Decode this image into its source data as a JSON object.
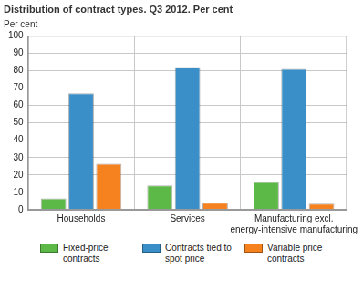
{
  "chart_data": {
    "type": "bar",
    "title": "Distribution of contract types. Q3 2012. Per cent",
    "y_label": "Per cent",
    "categories": [
      "Households",
      "Services",
      "Manufacturing excl. energy-intensive manufacturing"
    ],
    "series": [
      {
        "name": "Fixed-price contracts",
        "color": "#5cb847",
        "values": [
          6.5,
          14,
          16
        ]
      },
      {
        "name": "Contracts tied to spot price",
        "color": "#3a8fc9",
        "values": [
          67,
          82,
          81
        ]
      },
      {
        "name": "Variable price contracts",
        "color": "#f5821f",
        "values": [
          26.5,
          4,
          3.5
        ]
      }
    ],
    "ylim": [
      0,
      100
    ],
    "yticks": [
      0,
      10,
      20,
      30,
      40,
      50,
      60,
      70,
      80,
      90,
      100
    ],
    "grid": true,
    "legend": "bottom"
  }
}
